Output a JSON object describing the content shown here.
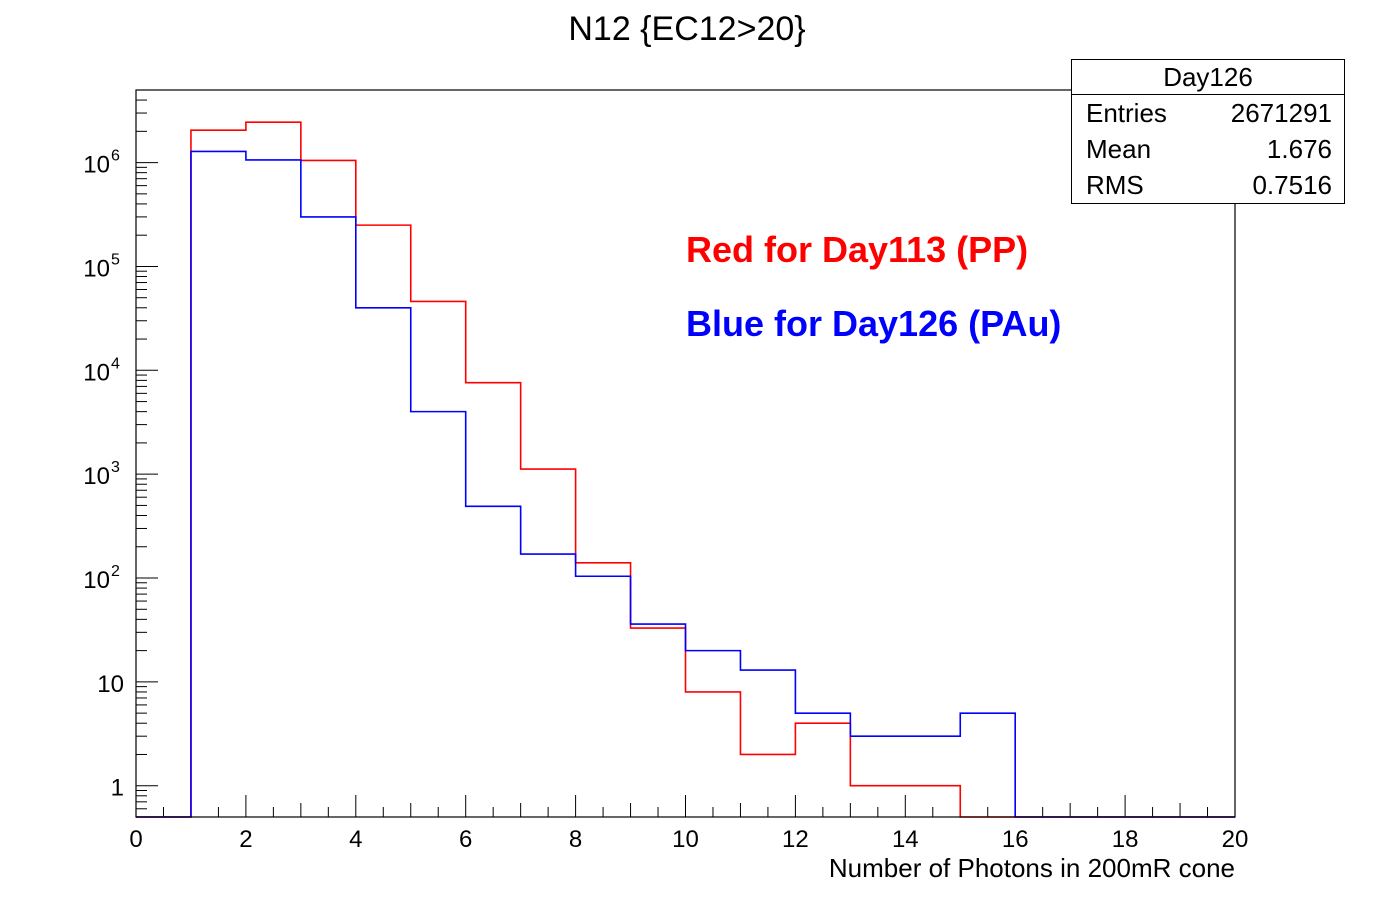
{
  "chart_data": {
    "type": "histogram",
    "title": "N12 {EC12>20}",
    "xlabel": "Number of Photons in 200mR cone",
    "ylabel": "",
    "xlim": [
      0,
      20
    ],
    "ylim": [
      0.5,
      5000000
    ],
    "yscale": "log",
    "bin_edges": [
      0,
      1,
      2,
      3,
      4,
      5,
      6,
      7,
      8,
      9,
      10,
      11,
      12,
      13,
      14,
      15,
      16,
      17,
      18,
      19,
      20
    ],
    "x_ticks": [
      "0",
      "2",
      "4",
      "6",
      "8",
      "10",
      "12",
      "14",
      "16",
      "18",
      "20"
    ],
    "y_ticks": [
      {
        "value": 1,
        "label": "1"
      },
      {
        "value": 10,
        "label": "10"
      },
      {
        "value": 100,
        "label": "10",
        "exp": "2"
      },
      {
        "value": 1000,
        "label": "10",
        "exp": "3"
      },
      {
        "value": 10000,
        "label": "10",
        "exp": "4"
      },
      {
        "value": 100000,
        "label": "10",
        "exp": "5"
      },
      {
        "value": 1000000,
        "label": "10",
        "exp": "6"
      }
    ],
    "series": [
      {
        "color": "#ff0000",
        "values": [
          0,
          2050000,
          2450000,
          1050000,
          250000,
          46000,
          7600,
          1120,
          140,
          33,
          8,
          2,
          4,
          1,
          1,
          0,
          0,
          0,
          0,
          0
        ]
      },
      {
        "color": "#0000ff",
        "values": [
          0,
          1280000,
          1060000,
          300000,
          40000,
          4000,
          490,
          170,
          104,
          36,
          20,
          13,
          5,
          3,
          3,
          5,
          0,
          0,
          0,
          0
        ]
      }
    ],
    "annotations": [
      {
        "text": "Red for Day113 (PP)",
        "color": "#ff0000"
      },
      {
        "text": "Blue for Day126 (PAu)",
        "color": "#0000ff"
      }
    ],
    "stats_box": {
      "title": "Day126",
      "rows": [
        {
          "key": "Entries",
          "value": "2671291"
        },
        {
          "key": "Mean",
          "value": "1.676"
        },
        {
          "key": "RMS",
          "value": "0.7516"
        }
      ]
    }
  }
}
